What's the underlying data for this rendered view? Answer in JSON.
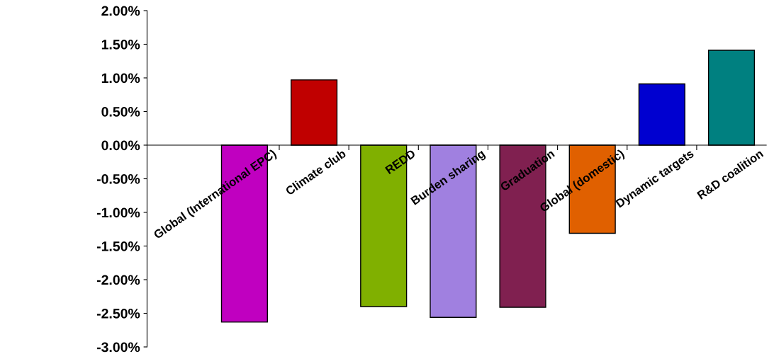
{
  "chart_data": {
    "type": "bar",
    "categories": [
      "Global (International EPC)",
      "Climate club",
      "REDD",
      "Burden sharing",
      "Graduation",
      "Global (domestic)",
      "Dynamic targets",
      "R&D coalition"
    ],
    "values": [
      -2.63,
      0.97,
      -2.4,
      -2.56,
      -2.41,
      -1.31,
      0.91,
      1.41
    ],
    "colors": [
      "#c000c0",
      "#c00000",
      "#80b000",
      "#a080e0",
      "#802050",
      "#e06000",
      "#0000d0",
      "#008080"
    ],
    "ylim": [
      -3,
      2
    ],
    "yticks": [
      {
        "value": -3,
        "label": "-3.00%"
      },
      {
        "value": -2.5,
        "label": "-2.50%"
      },
      {
        "value": -2,
        "label": "-2.00%"
      },
      {
        "value": -1.5,
        "label": "-1.50%"
      },
      {
        "value": -1,
        "label": "-1.00%"
      },
      {
        "value": -0.5,
        "label": "-0.50%"
      },
      {
        "value": 0,
        "label": "0.00%"
      },
      {
        "value": 0.5,
        "label": "0.50%"
      },
      {
        "value": 1,
        "label": "1.00%"
      },
      {
        "value": 1.5,
        "label": "1.50%"
      },
      {
        "value": 2,
        "label": "2.00%"
      }
    ],
    "grid": false,
    "legend": false
  }
}
